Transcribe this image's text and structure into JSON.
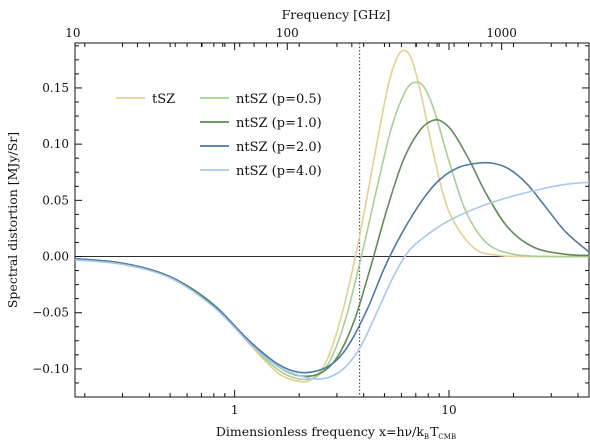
{
  "chart_data": {
    "type": "line",
    "title": "",
    "xlabel_main": "Dimensionless frequency x=hν/k",
    "xlabel_sub_b": "B",
    "xlabel_T": "T",
    "xlabel_sub_cmb": "CMB",
    "ylabel": "Spectral distortion [MJy/Sr]",
    "top_xlabel": "Frequency [GHz]",
    "x_scale": "log",
    "xlim": [
      0.18,
      45
    ],
    "ylim": [
      -0.125,
      0.19
    ],
    "bottom_ticks": [
      {
        "value": 1,
        "label": "1"
      },
      {
        "value": 10,
        "label": "10"
      }
    ],
    "top_ticks": [
      {
        "value": 10,
        "label": "10"
      },
      {
        "value": 100,
        "label": "100"
      },
      {
        "value": 1000,
        "label": "1000"
      }
    ],
    "ghz_per_x": 56.8,
    "y_ticks": [
      {
        "value": -0.1,
        "label": "−0.10"
      },
      {
        "value": -0.05,
        "label": "−0.05"
      },
      {
        "value": 0.0,
        "label": "0.00"
      },
      {
        "value": 0.05,
        "label": "0.05"
      },
      {
        "value": 0.1,
        "label": "0.10"
      },
      {
        "value": 0.15,
        "label": "0.15"
      }
    ],
    "zero_line": 0.0,
    "vertical_line_x": 3.83,
    "legend_placement": "top-left",
    "series": [
      {
        "name": "tSZ",
        "color": "#e6cf8f",
        "x": [
          0.18,
          0.3,
          0.5,
          0.8,
          1.2,
          1.6,
          2.0,
          2.3,
          2.7,
          3.2,
          3.8,
          4.5,
          5.2,
          5.8,
          6.3,
          6.8,
          7.5,
          8.5,
          10,
          13,
          17,
          25,
          45
        ],
        "y": [
          -0.002,
          -0.006,
          -0.018,
          -0.043,
          -0.08,
          -0.104,
          -0.111,
          -0.109,
          -0.092,
          -0.048,
          0.015,
          0.09,
          0.152,
          0.179,
          0.183,
          0.172,
          0.14,
          0.09,
          0.04,
          0.008,
          0.001,
          0.0,
          0.0
        ]
      },
      {
        "name": "ntSZ (p=0.5)",
        "color": "#a8cf94",
        "x": [
          0.18,
          0.3,
          0.5,
          0.8,
          1.2,
          1.6,
          2.0,
          2.4,
          2.8,
          3.3,
          3.9,
          4.6,
          5.4,
          6.3,
          7.0,
          7.7,
          8.6,
          10,
          12,
          15,
          20,
          30,
          45
        ],
        "y": [
          -0.002,
          -0.006,
          -0.018,
          -0.043,
          -0.079,
          -0.101,
          -0.109,
          -0.107,
          -0.092,
          -0.055,
          0.0,
          0.06,
          0.115,
          0.148,
          0.155,
          0.15,
          0.128,
          0.085,
          0.04,
          0.012,
          0.002,
          0.0,
          0.0
        ]
      },
      {
        "name": "ntSZ (p=1.0)",
        "color": "#5f8d55",
        "x": [
          0.18,
          0.3,
          0.5,
          0.8,
          1.2,
          1.6,
          2.0,
          2.5,
          3.0,
          3.6,
          4.3,
          5.1,
          6.1,
          7.3,
          8.4,
          9.3,
          10.5,
          12.5,
          15,
          19,
          25,
          35,
          45
        ],
        "y": [
          -0.002,
          -0.006,
          -0.018,
          -0.043,
          -0.078,
          -0.098,
          -0.106,
          -0.104,
          -0.09,
          -0.058,
          -0.01,
          0.04,
          0.085,
          0.112,
          0.121,
          0.12,
          0.11,
          0.085,
          0.055,
          0.025,
          0.008,
          0.002,
          0.001
        ]
      },
      {
        "name": "ntSZ (p=2.0)",
        "color": "#4d7aa3",
        "x": [
          0.18,
          0.3,
          0.5,
          0.8,
          1.2,
          1.6,
          2.0,
          2.5,
          3.0,
          3.5,
          4.2,
          5.0,
          6.0,
          7.5,
          9.0,
          11,
          13.5,
          16,
          19,
          23,
          28,
          35,
          45
        ],
        "y": [
          -0.002,
          -0.006,
          -0.018,
          -0.044,
          -0.077,
          -0.096,
          -0.103,
          -0.101,
          -0.092,
          -0.075,
          -0.045,
          -0.01,
          0.02,
          0.05,
          0.068,
          0.079,
          0.083,
          0.083,
          0.078,
          0.065,
          0.045,
          0.022,
          0.004
        ]
      },
      {
        "name": "ntSZ (p=4.0)",
        "color": "#a6c8ee",
        "x": [
          0.18,
          0.3,
          0.5,
          0.8,
          1.2,
          1.6,
          2.0,
          2.4,
          2.8,
          3.3,
          3.9,
          4.6,
          5.5,
          6.5,
          8.0,
          10,
          13,
          17,
          22,
          30,
          38,
          45
        ],
        "y": [
          -0.003,
          -0.007,
          -0.019,
          -0.045,
          -0.079,
          -0.098,
          -0.106,
          -0.109,
          -0.107,
          -0.098,
          -0.079,
          -0.05,
          -0.018,
          0.005,
          0.02,
          0.032,
          0.042,
          0.05,
          0.056,
          0.062,
          0.065,
          0.066
        ]
      }
    ]
  }
}
